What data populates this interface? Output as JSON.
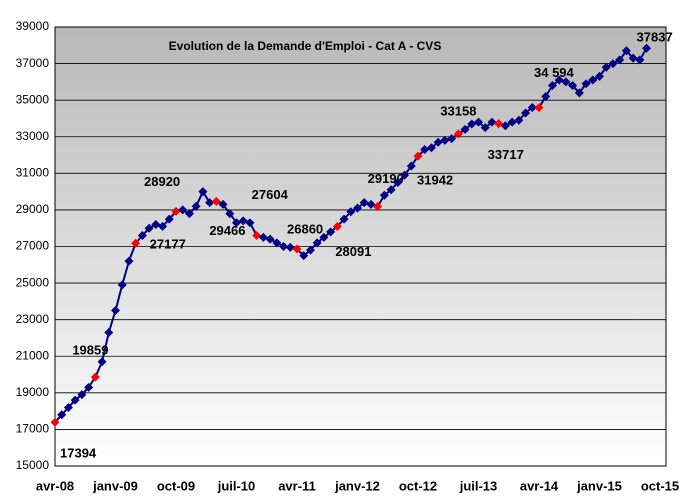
{
  "chart_data": {
    "type": "line",
    "title": "Evolution de la Demande d'Emploi - Cat A - CVS",
    "categories": [
      "avr-08",
      null,
      null,
      null,
      null,
      null,
      null,
      null,
      null,
      "janv-09",
      null,
      null,
      null,
      null,
      null,
      null,
      null,
      null,
      "oct-09",
      null,
      null,
      null,
      null,
      null,
      null,
      null,
      null,
      "juil-10",
      null,
      null,
      null,
      null,
      null,
      null,
      null,
      null,
      "avr-11",
      null,
      null,
      null,
      null,
      null,
      null,
      null,
      null,
      "janv-12",
      null,
      null,
      null,
      null,
      null,
      null,
      null,
      null,
      "oct-12",
      null,
      null,
      null,
      null,
      null,
      null,
      null,
      null,
      "juil-13",
      null,
      null,
      null,
      null,
      null,
      null,
      null,
      null,
      "avr-14",
      null,
      null,
      null,
      null,
      null,
      null,
      null,
      null,
      "janv-15",
      null,
      null,
      null,
      null,
      null,
      null,
      null,
      null,
      "oct-15"
    ],
    "series": [
      {
        "name": "Demande d'Emploi Cat A",
        "color": "#000080",
        "values": [
          17394,
          17800,
          18200,
          18600,
          18900,
          19300,
          19859,
          20700,
          22300,
          23500,
          24900,
          26200,
          27177,
          27600,
          28000,
          28200,
          28100,
          28500,
          28920,
          29000,
          28800,
          29200,
          30000,
          29400,
          29466,
          29300,
          28800,
          28300,
          28400,
          28300,
          27604,
          27500,
          27400,
          27200,
          27000,
          26950,
          26860,
          26500,
          26800,
          27200,
          27500,
          27800,
          28091,
          28500,
          28900,
          29100,
          29400,
          29300,
          29190,
          29800,
          30100,
          30500,
          30900,
          31400,
          31942,
          32300,
          32400,
          32700,
          32800,
          32900,
          33158,
          33400,
          33700,
          33800,
          33500,
          33800,
          33717,
          33600,
          33800,
          33900,
          34300,
          34600,
          34594,
          35200,
          35800,
          36100,
          36000,
          35800,
          35400,
          35900,
          36100,
          36300,
          36800,
          37000,
          37200,
          37700,
          37300,
          37200,
          37837,
          null,
          null
        ],
        "value_labels": [
          "17394",
          null,
          null,
          null,
          null,
          null,
          "19859",
          null,
          null,
          null,
          null,
          null,
          "27177",
          null,
          null,
          null,
          null,
          null,
          "28920",
          null,
          null,
          null,
          null,
          null,
          "29466",
          null,
          null,
          null,
          null,
          null,
          "27604",
          null,
          null,
          null,
          null,
          null,
          "26860",
          null,
          null,
          null,
          null,
          null,
          "28091",
          null,
          null,
          null,
          null,
          null,
          "29190",
          null,
          null,
          null,
          null,
          null,
          "31942",
          null,
          null,
          null,
          null,
          null,
          "33158",
          null,
          null,
          null,
          null,
          null,
          "33717",
          null,
          null,
          null,
          null,
          null,
          "34 594",
          null,
          null,
          null,
          null,
          null,
          null,
          null,
          null,
          null,
          null,
          null,
          null,
          null,
          null,
          null,
          "37837",
          null,
          null
        ],
        "highlight_color": "#ff0000"
      }
    ],
    "ylim": [
      15000,
      39000
    ],
    "yticks": [
      15000,
      17000,
      19000,
      21000,
      23000,
      25000,
      27000,
      29000,
      31000,
      33000,
      35000,
      37000,
      39000
    ],
    "grid": true
  }
}
